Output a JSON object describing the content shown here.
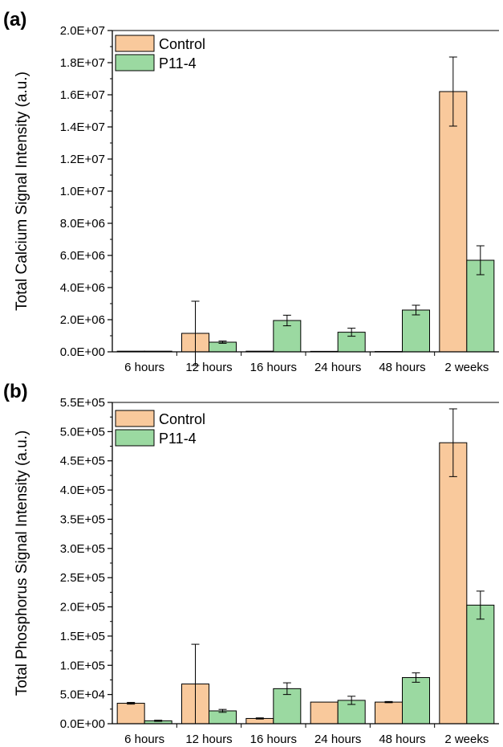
{
  "colors": {
    "control": "#f9c99c",
    "p11_4": "#9bd9a1",
    "stroke": "#000000"
  },
  "chart_data": [
    {
      "panel": "(a)",
      "type": "bar",
      "categories": [
        "6 hours",
        "12 hours",
        "16 hours",
        "24 hours",
        "48 hours",
        "2 weeks"
      ],
      "ylabel": "Total Calcium Signal Intensity (a.u.)",
      "ylim": [
        0,
        20000000
      ],
      "yticks": [
        0,
        2000000,
        4000000,
        6000000,
        8000000,
        10000000,
        12000000,
        14000000,
        16000000,
        18000000,
        20000000
      ],
      "ytick_labels": [
        "0.0E+00",
        "2.0E+06",
        "4.0E+06",
        "6.0E+06",
        "8.0E+06",
        "1.0E+07",
        "1.2E+07",
        "1.4E+07",
        "1.6E+07",
        "1.8E+07",
        "2.0E+07"
      ],
      "legend": {
        "position": "top-left"
      },
      "series": [
        {
          "name": "Control",
          "values": [
            40000,
            1150000,
            40000,
            30000,
            20000,
            16200000
          ],
          "errors": [
            0,
            2000000,
            0,
            0,
            0,
            2150000
          ]
        },
        {
          "name": "P11-4",
          "values": [
            40000,
            600000,
            1950000,
            1220000,
            2600000,
            5700000
          ],
          "errors": [
            0,
            70000,
            330000,
            250000,
            300000,
            900000
          ]
        }
      ]
    },
    {
      "panel": "(b)",
      "type": "bar",
      "categories": [
        "6 hours",
        "12 hours",
        "16 hours",
        "24 hours",
        "48 hours",
        "2 weeks"
      ],
      "ylabel": "Total Phosphorus Signal Intensity (a.u.)",
      "ylim": [
        0,
        550000
      ],
      "yticks": [
        0,
        50000,
        100000,
        150000,
        200000,
        250000,
        300000,
        350000,
        400000,
        450000,
        500000,
        550000
      ],
      "ytick_labels": [
        "0.0E+00",
        "5.0E+04",
        "1.0E+05",
        "1.5E+05",
        "2.0E+05",
        "2.5E+05",
        "3.0E+05",
        "3.5E+05",
        "4.0E+05",
        "4.5E+05",
        "5.0E+05",
        "5.5E+05"
      ],
      "legend": {
        "position": "top-left"
      },
      "series": [
        {
          "name": "Control",
          "values": [
            35000,
            68000,
            9000,
            37000,
            37000,
            481000
          ],
          "errors": [
            1500,
            68000,
            1000,
            0,
            1000,
            58000
          ]
        },
        {
          "name": "P11-4",
          "values": [
            5000,
            22000,
            60000,
            40000,
            79000,
            203000
          ],
          "errors": [
            1000,
            2500,
            10000,
            7000,
            8000,
            24000
          ]
        }
      ]
    }
  ]
}
